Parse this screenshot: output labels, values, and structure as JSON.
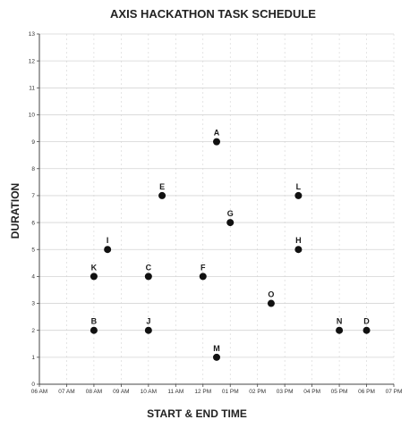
{
  "chart_data": {
    "type": "scatter",
    "title": "AXIS HACKATHON TASK SCHEDULE",
    "xlabel": "START & END TIME",
    "ylabel": "DURATION",
    "x_ticks": [
      "06 AM",
      "07 AM",
      "08 AM",
      "09 AM",
      "10 AM",
      "11 AM",
      "12 PM",
      "01 PM",
      "02 PM",
      "03 PM",
      "04 PM",
      "05 PM",
      "06 PM",
      "07 PM"
    ],
    "y_ticks": [
      "0",
      "1",
      "2",
      "3",
      "4",
      "5",
      "6",
      "7",
      "8",
      "9",
      "10",
      "11",
      "12",
      "13"
    ],
    "xlim": [
      "06 AM",
      "07 PM"
    ],
    "ylim": [
      0,
      13
    ],
    "grid": true,
    "points": [
      {
        "label": "A",
        "x": "12:30 PM",
        "y": 9
      },
      {
        "label": "B",
        "x": "08:00 AM",
        "y": 2
      },
      {
        "label": "C",
        "x": "10:00 AM",
        "y": 4
      },
      {
        "label": "D",
        "x": "06:00 PM",
        "y": 2
      },
      {
        "label": "E",
        "x": "10:30 AM",
        "y": 7
      },
      {
        "label": "F",
        "x": "12:00 PM",
        "y": 4
      },
      {
        "label": "G",
        "x": "01:00 PM",
        "y": 6
      },
      {
        "label": "H",
        "x": "03:30 PM",
        "y": 5
      },
      {
        "label": "I",
        "x": "08:30 AM",
        "y": 5
      },
      {
        "label": "J",
        "x": "10:00 AM",
        "y": 2
      },
      {
        "label": "K",
        "x": "08:00 AM",
        "y": 4
      },
      {
        "label": "L",
        "x": "03:30 PM",
        "y": 7
      },
      {
        "label": "M",
        "x": "12:30 PM",
        "y": 1
      },
      {
        "label": "N",
        "x": "05:00 PM",
        "y": 2
      },
      {
        "label": "O",
        "x": "02:30 PM",
        "y": 3
      }
    ]
  },
  "colors": {
    "point": "#111111",
    "grid": "#d4d4d4",
    "axis": "#444444",
    "background": "#ffffff"
  }
}
